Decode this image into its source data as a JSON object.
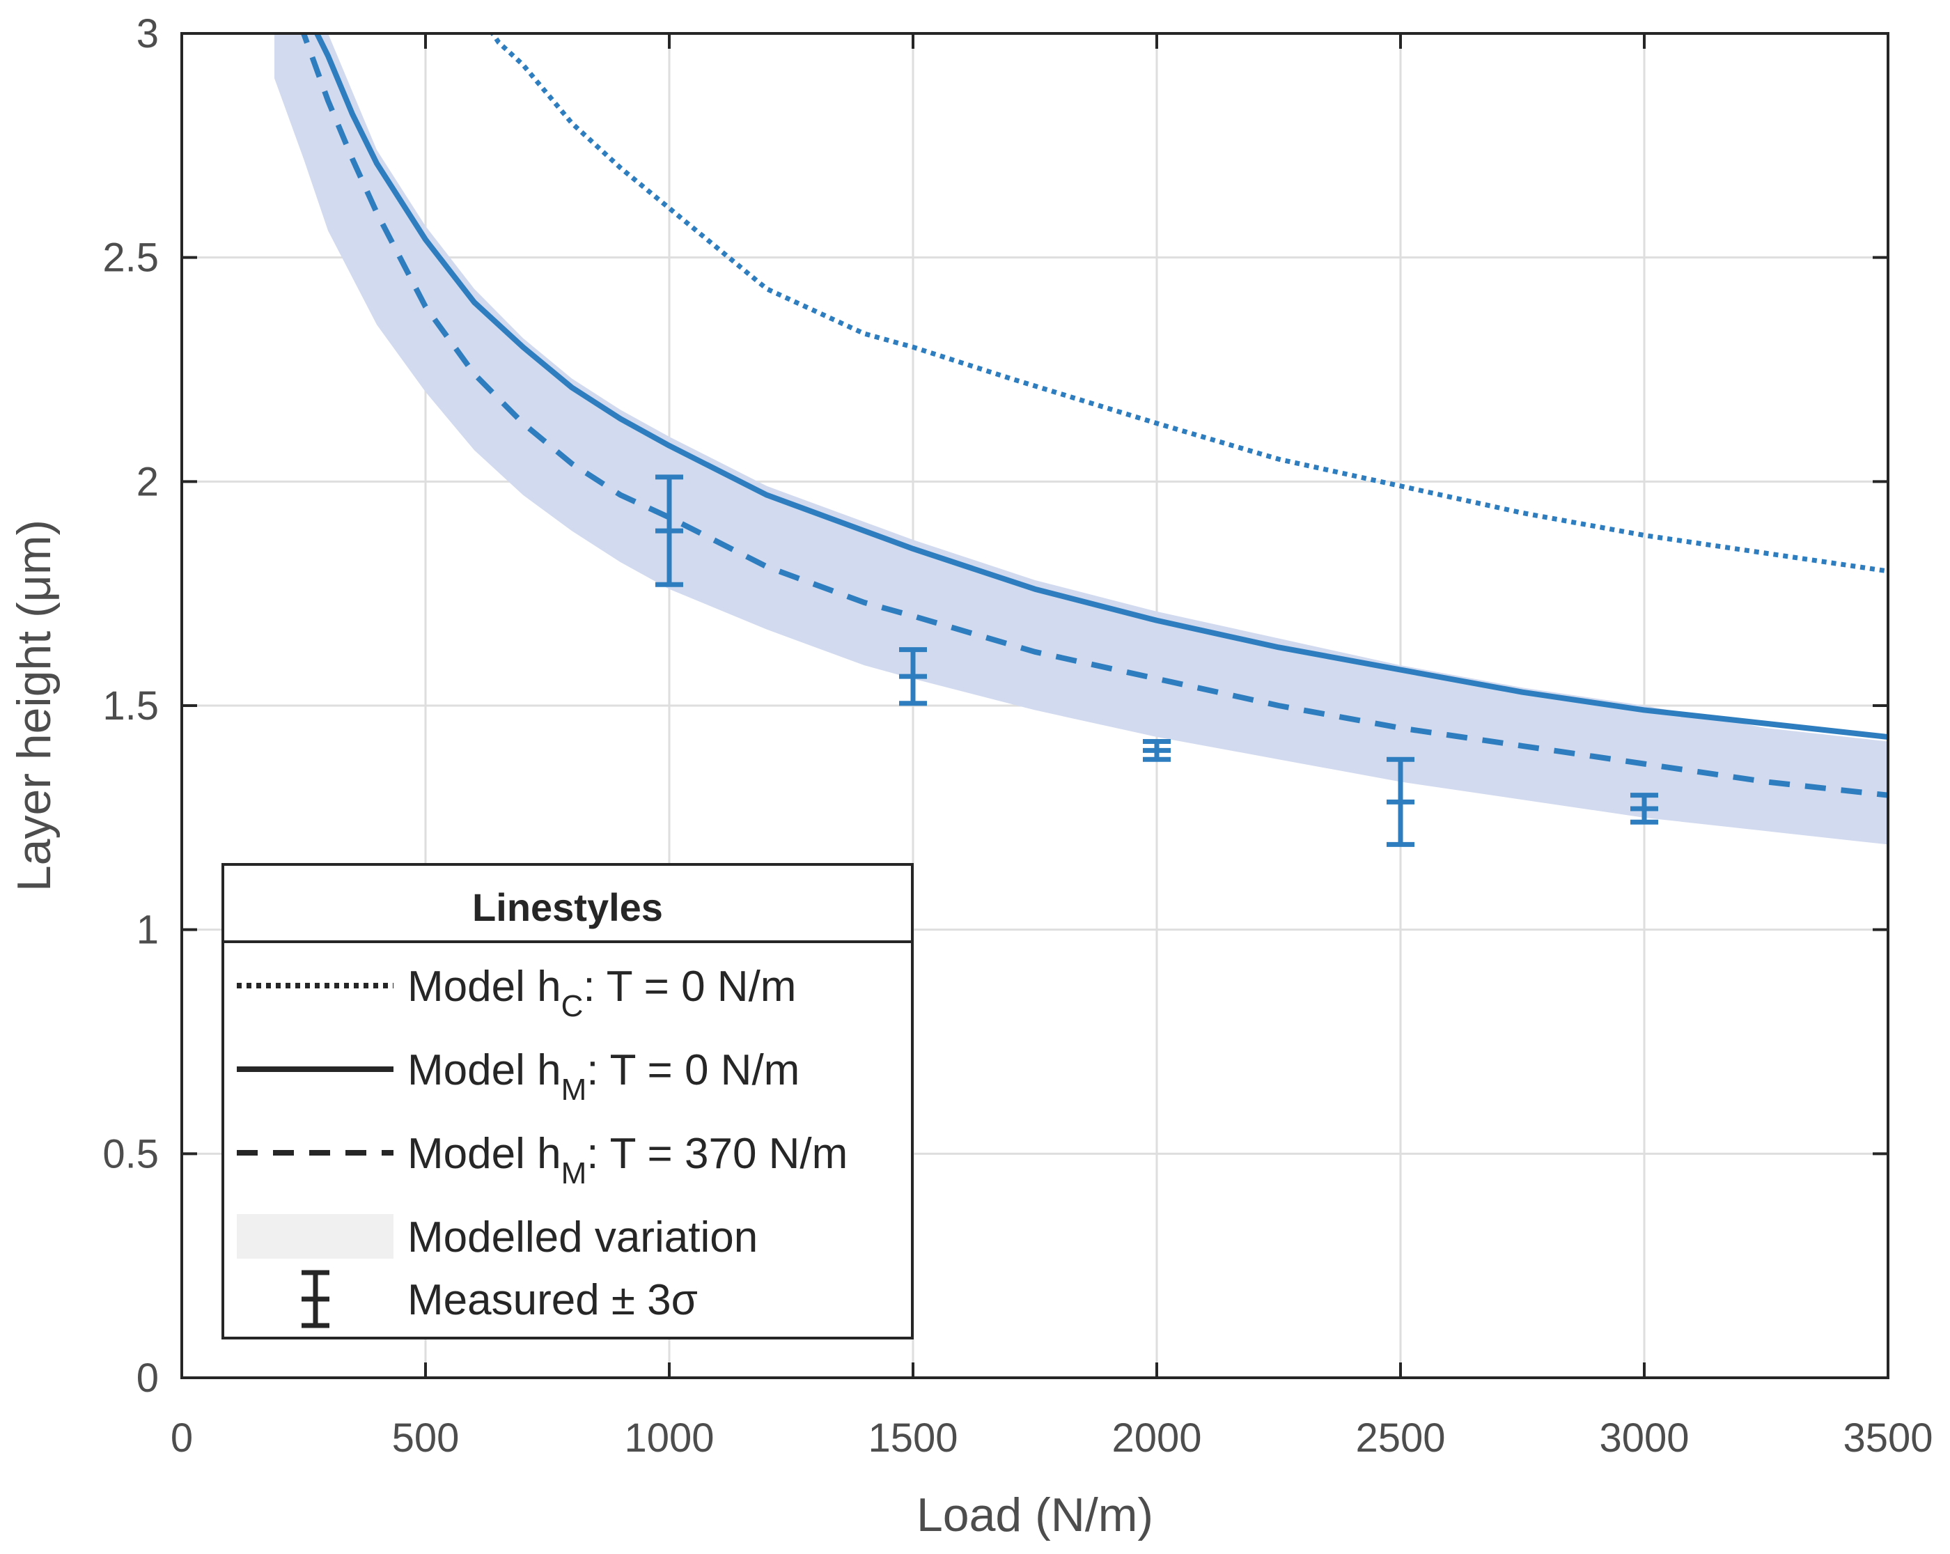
{
  "chart_data": {
    "type": "line",
    "title": "",
    "xlabel": "Load (N/m)",
    "ylabel": "Layer height (μm)",
    "xlim": [
      0,
      3500
    ],
    "ylim": [
      0,
      3
    ],
    "xticks": [
      0,
      500,
      1000,
      1500,
      2000,
      2500,
      3000,
      3500
    ],
    "xtick_labels": [
      "0",
      "500",
      "1000",
      "1500",
      "2000",
      "2500",
      "3000",
      "3500"
    ],
    "yticks": [
      0,
      0.5,
      1,
      1.5,
      2,
      2.5,
      3
    ],
    "ytick_labels": [
      "0",
      "0.5",
      "1",
      "1.5",
      "2",
      "2.5",
      "3"
    ],
    "grid": true,
    "colors": {
      "series": "#2e7ebf",
      "band": "#d2daef",
      "axis": "#262626",
      "grid": "#dedede"
    },
    "series": [
      {
        "name": "Model hC: T = 0 N/m",
        "style": "dotted",
        "x": [
          600,
          650,
          700,
          800,
          900,
          1000,
          1200,
          1400,
          1500,
          1700,
          2000,
          2250,
          2500,
          2750,
          3000,
          3250,
          3500
        ],
        "values": [
          3.06,
          2.98,
          2.93,
          2.8,
          2.7,
          2.61,
          2.43,
          2.33,
          2.3,
          2.23,
          2.13,
          2.05,
          1.99,
          1.93,
          1.88,
          1.84,
          1.8
        ]
      },
      {
        "name": "Model hM: T = 0 N/m",
        "style": "solid",
        "x": [
          230,
          250,
          300,
          350,
          400,
          500,
          600,
          700,
          800,
          900,
          1000,
          1200,
          1400,
          1500,
          1750,
          2000,
          2250,
          2500,
          2750,
          3000,
          3250,
          3500
        ],
        "values": [
          3.15,
          3.06,
          2.95,
          2.82,
          2.71,
          2.54,
          2.4,
          2.3,
          2.21,
          2.14,
          2.08,
          1.97,
          1.89,
          1.85,
          1.76,
          1.69,
          1.63,
          1.58,
          1.53,
          1.49,
          1.46,
          1.43
        ]
      },
      {
        "name": "Model hM: T = 370 N/m",
        "style": "dashed",
        "x": [
          220,
          250,
          300,
          350,
          400,
          500,
          600,
          700,
          800,
          900,
          1000,
          1200,
          1400,
          1500,
          1750,
          2000,
          2250,
          2500,
          2750,
          3000,
          3250,
          3500
        ],
        "values": [
          3.1,
          3.0,
          2.85,
          2.72,
          2.6,
          2.39,
          2.24,
          2.13,
          2.04,
          1.97,
          1.92,
          1.81,
          1.73,
          1.7,
          1.62,
          1.56,
          1.5,
          1.45,
          1.41,
          1.37,
          1.33,
          1.3
        ]
      }
    ],
    "band": {
      "name": "Modelled variation",
      "x": [
        190,
        250,
        300,
        400,
        500,
        600,
        700,
        800,
        900,
        1000,
        1200,
        1400,
        1500,
        1750,
        2000,
        2250,
        2500,
        2750,
        3000,
        3250,
        3500
      ],
      "upper": [
        3.0,
        3.0,
        3.0,
        2.74,
        2.57,
        2.43,
        2.32,
        2.23,
        2.16,
        2.1,
        1.99,
        1.91,
        1.87,
        1.78,
        1.71,
        1.65,
        1.59,
        1.54,
        1.5,
        1.45,
        1.42
      ],
      "lower": [
        2.9,
        2.72,
        2.56,
        2.35,
        2.2,
        2.07,
        1.97,
        1.89,
        1.82,
        1.76,
        1.67,
        1.59,
        1.56,
        1.49,
        1.43,
        1.38,
        1.33,
        1.29,
        1.25,
        1.22,
        1.19
      ]
    },
    "measured": {
      "name": "Measured ± 3σ",
      "x": [
        1000,
        1500,
        2000,
        2500,
        3000
      ],
      "mean": [
        1.89,
        1.565,
        1.4,
        1.285,
        1.27
      ],
      "lower": [
        1.77,
        1.505,
        1.38,
        1.19,
        1.24
      ],
      "upper": [
        2.01,
        1.625,
        1.42,
        1.38,
        1.3
      ]
    },
    "legend": {
      "title": "Linestyles",
      "position": "bottom-left",
      "entries": [
        {
          "symbol": "dotted",
          "prefix": "Model h",
          "sub": "C",
          "suffix": ": T = 0 N/m"
        },
        {
          "symbol": "solid",
          "prefix": "Model h",
          "sub": "M",
          "suffix": ": T = 0 N/m"
        },
        {
          "symbol": "dashed",
          "prefix": "Model h",
          "sub": "M",
          "suffix": ": T = 370 N/m"
        },
        {
          "symbol": "band",
          "prefix": "Modelled variation",
          "sub": "",
          "suffix": ""
        },
        {
          "symbol": "errorbar",
          "prefix": "Measured ± 3σ",
          "sub": "",
          "suffix": ""
        }
      ]
    }
  }
}
